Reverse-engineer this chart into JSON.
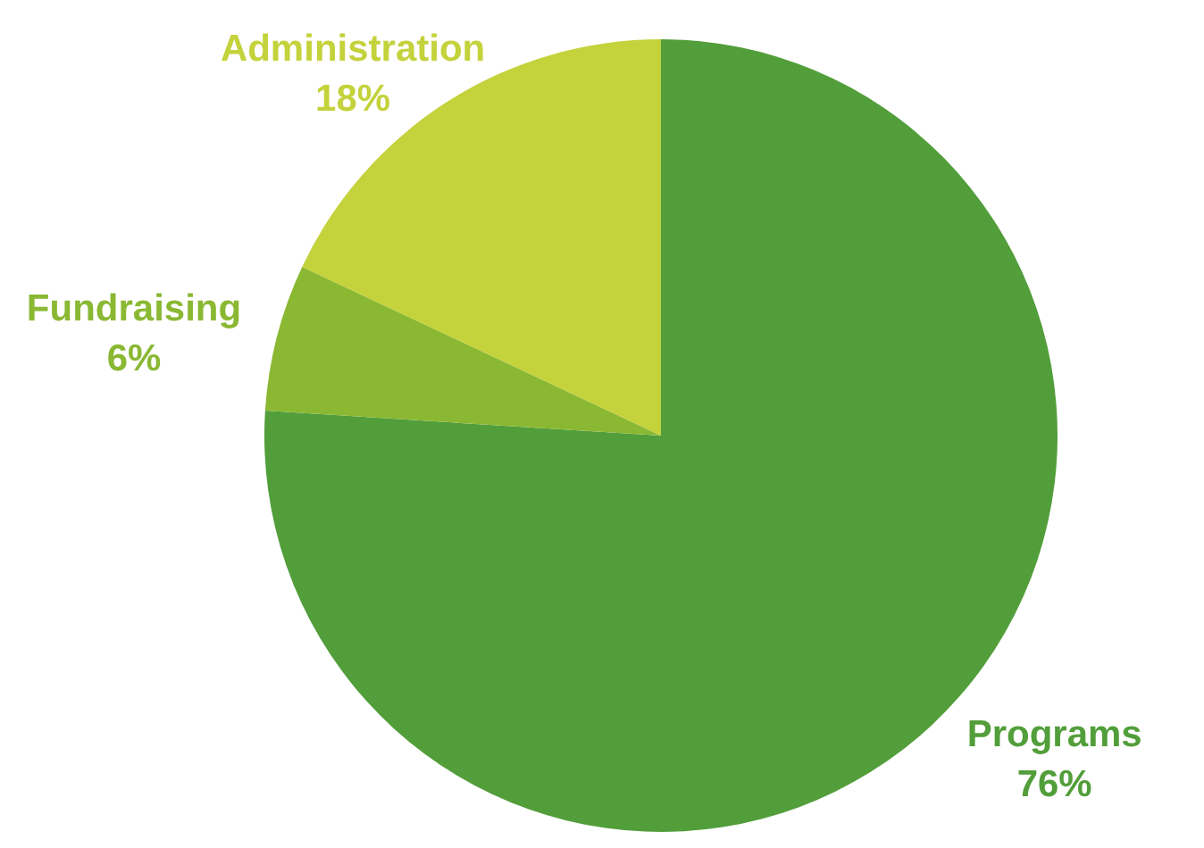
{
  "chart_data": {
    "type": "pie",
    "categories": [
      "Programs",
      "Fundraising",
      "Administration"
    ],
    "values": [
      76,
      6,
      18
    ],
    "colors": [
      "#529e3a",
      "#8ab833",
      "#c4d23b"
    ],
    "value_labels": [
      "76%",
      "6%",
      "18%"
    ]
  }
}
